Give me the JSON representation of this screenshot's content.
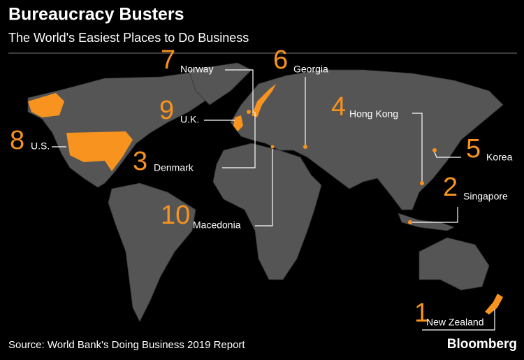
{
  "header": {
    "title": "Bureaucracy Busters",
    "subtitle": "The World's Easiest Places to Do Business"
  },
  "labels": [
    {
      "rank": 7,
      "country": "Norway"
    },
    {
      "rank": 6,
      "country": "Georgia"
    },
    {
      "rank": 9,
      "country": "U.K."
    },
    {
      "rank": 8,
      "country": "U.S."
    },
    {
      "rank": 3,
      "country": "Denmark"
    },
    {
      "rank": 4,
      "country": "Hong Kong"
    },
    {
      "rank": 5,
      "country": "Korea"
    },
    {
      "rank": 2,
      "country": "Singapore"
    },
    {
      "rank": 10,
      "country": "Macedonia"
    },
    {
      "rank": 1,
      "country": "New Zealand"
    }
  ],
  "footer": {
    "source": "Source: World Bank's Doing Business 2019 Report",
    "brand": "Bloomberg"
  }
}
